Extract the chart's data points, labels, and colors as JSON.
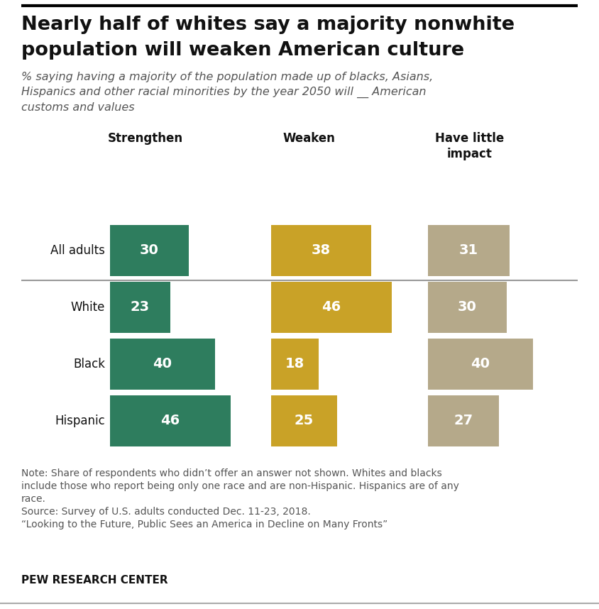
{
  "title_line1": "Nearly half of whites say a majority nonwhite",
  "title_line2": "population will weaken American culture",
  "subtitle": "% saying having a majority of the population made up of blacks, Asians,\nHispanics and other racial minorities by the year 2050 will __ American\ncustoms and values",
  "col_headers": [
    "Strengthen",
    "Weaken",
    "Have little\nimpact"
  ],
  "rows": [
    "All adults",
    "White",
    "Black",
    "Hispanic"
  ],
  "strengthen": [
    30,
    23,
    40,
    46
  ],
  "weaken": [
    38,
    46,
    18,
    25
  ],
  "little_impact": [
    31,
    30,
    40,
    27
  ],
  "color_strengthen": "#2E7D5E",
  "color_weaken": "#C9A227",
  "color_impact": "#B5A98A",
  "note_line1": "Note: Share of respondents who didn’t offer an answer not shown. Whites and blacks",
  "note_line2": "include those who report being only one race and are non-Hispanic. Hispanics are of any",
  "note_line3": "race.",
  "note_line4": "Source: Survey of U.S. adults conducted Dec. 11-23, 2018.",
  "note_line5": "“Looking to the Future, Public Sees an America in Decline on Many Fronts”",
  "footer": "PEW RESEARCH CENTER",
  "background_color": "#FFFFFF",
  "top_line_color": "#000000",
  "bottom_line_color": "#AAAAAA",
  "sep_line_color": "#999999"
}
